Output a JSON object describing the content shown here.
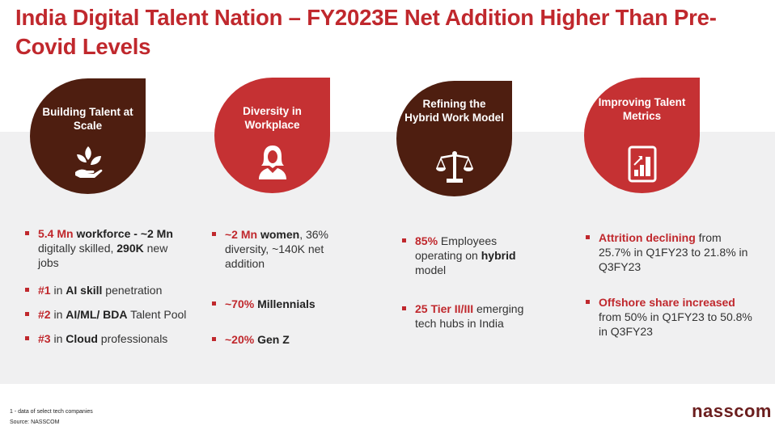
{
  "title": "India Digital Talent Nation – FY2023E Net Addition Higher Than Pre-Covid Levels",
  "colors": {
    "accent_red": "#c0282d",
    "brown": "#4e1e10",
    "red": "#c53133",
    "band": "#f0f0f1"
  },
  "pillars": [
    {
      "title": "Building Talent at Scale",
      "icon": "plant-in-hand-icon",
      "bullets": [
        [
          {
            "t": "5.4 Mn",
            "s": "r"
          },
          {
            "t": " workforce -   ~2 Mn",
            "s": "b"
          },
          {
            "t": " digitally skilled, ",
            "s": ""
          },
          {
            "t": "290K",
            "s": "b"
          },
          {
            "t": " new jobs",
            "s": ""
          }
        ],
        [
          {
            "t": "#1",
            "s": "r"
          },
          {
            "t": " in ",
            "s": ""
          },
          {
            "t": "AI skill",
            "s": "b"
          },
          {
            "t": " penetration",
            "s": ""
          }
        ],
        [
          {
            "t": "#2",
            "s": "r"
          },
          {
            "t": "  in ",
            "s": ""
          },
          {
            "t": "AI/ML/ BDA",
            "s": "b"
          },
          {
            "t": " Talent Pool",
            "s": ""
          }
        ],
        [
          {
            "t": "#3",
            "s": "r"
          },
          {
            "t": " in ",
            "s": ""
          },
          {
            "t": "Cloud",
            "s": "b"
          },
          {
            "t": " professionals",
            "s": ""
          }
        ]
      ]
    },
    {
      "title": "Diversity in Workplace",
      "icon": "woman-icon",
      "bullets": [
        [
          {
            "t": "~2 Mn",
            "s": "r"
          },
          {
            "t": " women",
            "s": "b"
          },
          {
            "t": ", 36% diversity, ~140K net addition",
            "s": ""
          }
        ],
        [
          {
            "t": "~70%",
            "s": "r"
          },
          {
            "t": " Millennials",
            "s": "b"
          }
        ],
        [
          {
            "t": "~20%",
            "s": "r"
          },
          {
            "t": " Gen Z",
            "s": "b"
          }
        ]
      ]
    },
    {
      "title": "Refining the Hybrid Work Model",
      "icon": "scales-icon",
      "bullets": [
        [
          {
            "t": "85%",
            "s": "r"
          },
          {
            "t": " Employees operating on ",
            "s": ""
          },
          {
            "t": "hybrid",
            "s": "b"
          },
          {
            "t": " model",
            "s": ""
          }
        ],
        [
          {
            "t": "25 Tier II/III",
            "s": "r"
          },
          {
            "t": " emerging tech hubs in India",
            "s": ""
          }
        ]
      ]
    },
    {
      "title": "Improving Talent Metrics",
      "icon": "bar-chart-icon",
      "bullets": [
        [
          {
            "t": "Attrition declining",
            "s": "r"
          },
          {
            "t": " from 25.7% in Q1FY23 to 21.8% in Q3FY23",
            "s": ""
          }
        ],
        [
          {
            "t": "Offshore share increased",
            "s": "r"
          },
          {
            "t": " from 50% in Q1FY23 to 50.8% in Q3FY23",
            "s": ""
          }
        ]
      ]
    }
  ],
  "footnote": "1 - data of select tech companies",
  "source": "Source: NASSCOM",
  "logo": "nasscom"
}
